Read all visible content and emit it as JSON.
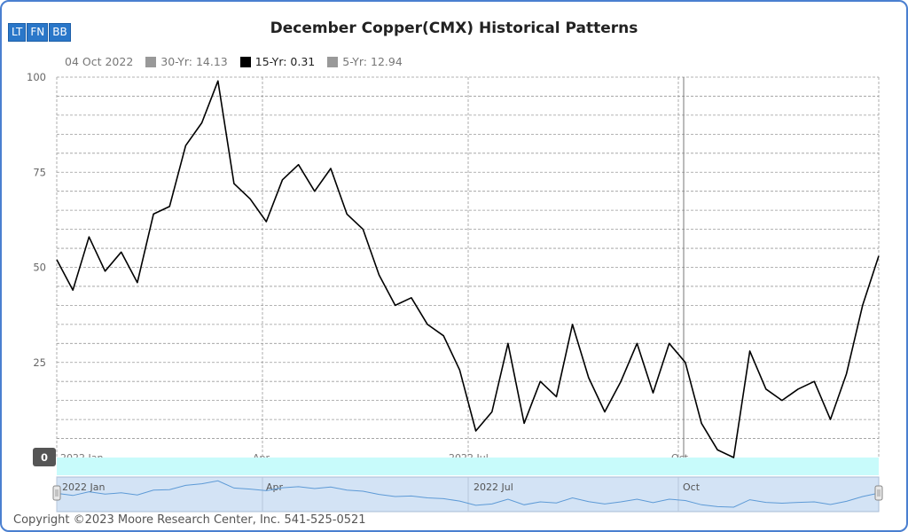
{
  "toolbar": {
    "buttons": [
      "LT",
      "FN",
      "BB"
    ]
  },
  "chart_data": {
    "type": "line",
    "title": "December Copper(CMX) Historical Patterns",
    "legend_date": "04 Oct 2022",
    "series": [
      {
        "name": "30-Yr: 14.13",
        "color": "#999999",
        "visible": false
      },
      {
        "name": "15-Yr: 0.31",
        "color": "#000000",
        "visible": true
      },
      {
        "name": "5-Yr: 12.94",
        "color": "#999999",
        "visible": false
      }
    ],
    "ylim": [
      0,
      100
    ],
    "y_ticks": [
      100,
      75,
      50,
      25
    ],
    "zero_label": "0",
    "x_ticks": [
      "2022 Jan",
      "Apr",
      "2022 Jul",
      "Oct"
    ],
    "navigator_ticks": [
      "2022 Jan",
      "Apr",
      "2022 Jul",
      "Oct"
    ],
    "grid": true,
    "x": [
      "Jan 02",
      "Jan 09",
      "Jan 16",
      "Jan 23",
      "Jan 30",
      "Feb 06",
      "Feb 13",
      "Feb 20",
      "Feb 27",
      "Mar 06",
      "Mar 13",
      "Mar 20",
      "Mar 27",
      "Apr 03",
      "Apr 10",
      "Apr 17",
      "Apr 24",
      "May 01",
      "May 08",
      "May 15",
      "May 22",
      "May 29",
      "Jun 05",
      "Jun 12",
      "Jun 19",
      "Jun 26",
      "Jul 03",
      "Jul 10",
      "Jul 17",
      "Jul 24",
      "Jul 31",
      "Aug 07",
      "Aug 14",
      "Aug 21",
      "Aug 28",
      "Sep 04",
      "Sep 11",
      "Sep 18",
      "Sep 25",
      "Oct 02",
      "Oct 09",
      "Oct 16",
      "Oct 23",
      "Oct 30",
      "Nov 06",
      "Nov 13",
      "Nov 20",
      "Nov 27",
      "Dec 04",
      "Dec 11",
      "Dec 18",
      "Dec 25"
    ],
    "values": [
      52,
      44,
      58,
      49,
      54,
      46,
      64,
      66,
      82,
      88,
      99,
      72,
      68,
      62,
      73,
      77,
      70,
      76,
      64,
      60,
      48,
      40,
      42,
      35,
      32,
      23,
      7,
      12,
      30,
      9,
      20,
      16,
      35,
      21,
      12,
      20,
      30,
      17,
      30,
      25,
      9,
      2,
      0,
      28,
      18,
      15,
      18,
      20,
      10,
      22,
      40,
      53
    ]
  },
  "copyright": "Copyright ©2023 Moore Research Center, Inc. 541-525-0521"
}
